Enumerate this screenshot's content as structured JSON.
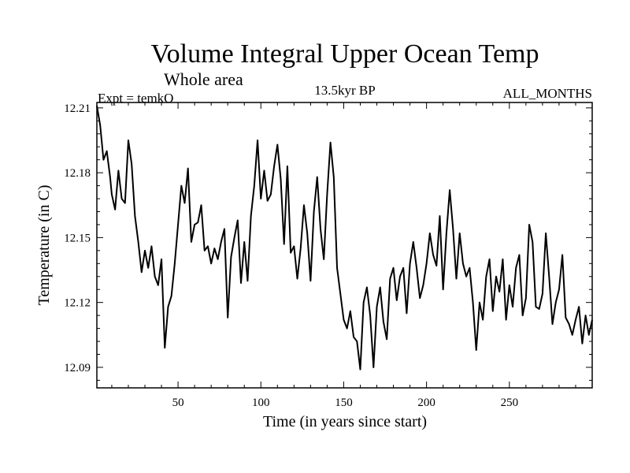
{
  "chart_data": {
    "type": "line",
    "title": "Volume Integral Upper Ocean Temp",
    "subtitle": "Whole area",
    "left_label": "Expt = temkO",
    "center_label": "13.5kyr BP",
    "right_label": "ALL_MONTHS",
    "xlabel": "Time (in years since start)",
    "ylabel": "Temperature (in C)",
    "xlim": [
      1,
      300
    ],
    "ylim": [
      12.0805,
      12.2125
    ],
    "xticks": [
      50,
      100,
      150,
      200,
      250
    ],
    "xtick_labels": [
      "50",
      "100",
      "150",
      "200",
      "250"
    ],
    "yticks": [
      12.09,
      12.12,
      12.15,
      12.18,
      12.21
    ],
    "ytick_labels": [
      "12.09",
      "12.12",
      "12.15",
      "12.18",
      "12.21"
    ],
    "grid": false,
    "series": [
      {
        "name": "Expt = temkO",
        "x": [
          1,
          3,
          5,
          7,
          9,
          10,
          12,
          14,
          16,
          18,
          20,
          22,
          24,
          26,
          28,
          30,
          32,
          34,
          36,
          38,
          40,
          42,
          44,
          46,
          48,
          50,
          52,
          54,
          56,
          58,
          60,
          62,
          64,
          66,
          68,
          70,
          72,
          74,
          76,
          78,
          80,
          82,
          84,
          86,
          88,
          90,
          92,
          94,
          96,
          98,
          100,
          102,
          104,
          106,
          108,
          110,
          112,
          114,
          116,
          118,
          120,
          122,
          124,
          126,
          128,
          130,
          132,
          134,
          136,
          138,
          140,
          142,
          144,
          146,
          148,
          150,
          152,
          154,
          156,
          158,
          160,
          162,
          164,
          166,
          168,
          170,
          172,
          174,
          176,
          178,
          180,
          182,
          184,
          186,
          188,
          190,
          192,
          194,
          196,
          198,
          200,
          202,
          204,
          206,
          208,
          210,
          212,
          214,
          216,
          218,
          220,
          222,
          224,
          226,
          228,
          230,
          232,
          234,
          236,
          238,
          240,
          242,
          244,
          246,
          248,
          250,
          252,
          254,
          256,
          258,
          260,
          262,
          264,
          266,
          268,
          270,
          272,
          274,
          276,
          278,
          280,
          282,
          284,
          286,
          288,
          290,
          292,
          294,
          296,
          298,
          300
        ],
        "y": [
          12.211,
          12.202,
          12.186,
          12.19,
          12.178,
          12.17,
          12.163,
          12.181,
          12.168,
          12.166,
          12.195,
          12.184,
          12.16,
          12.148,
          12.134,
          12.144,
          12.136,
          12.146,
          12.132,
          12.128,
          12.14,
          12.099,
          12.118,
          12.123,
          12.138,
          12.156,
          12.174,
          12.166,
          12.182,
          12.148,
          12.156,
          12.157,
          12.165,
          12.144,
          12.146,
          12.138,
          12.145,
          12.14,
          12.148,
          12.154,
          12.113,
          12.141,
          12.15,
          12.158,
          12.129,
          12.148,
          12.13,
          12.16,
          12.174,
          12.195,
          12.168,
          12.181,
          12.167,
          12.17,
          12.183,
          12.193,
          12.177,
          12.147,
          12.183,
          12.143,
          12.146,
          12.131,
          12.145,
          12.165,
          12.152,
          12.13,
          12.162,
          12.178,
          12.154,
          12.14,
          12.17,
          12.194,
          12.178,
          12.136,
          12.124,
          12.112,
          12.108,
          12.116,
          12.104,
          12.102,
          12.089,
          12.12,
          12.127,
          12.114,
          12.09,
          12.118,
          12.127,
          12.111,
          12.103,
          12.131,
          12.136,
          12.121,
          12.132,
          12.136,
          12.115,
          12.138,
          12.148,
          12.136,
          12.122,
          12.128,
          12.138,
          12.152,
          12.142,
          12.137,
          12.16,
          12.126,
          12.152,
          12.172,
          12.154,
          12.131,
          12.152,
          12.138,
          12.132,
          12.136,
          12.12,
          12.098,
          12.12,
          12.112,
          12.132,
          12.14,
          12.116,
          12.132,
          12.125,
          12.14,
          12.112,
          12.128,
          12.118,
          12.136,
          12.142,
          12.114,
          12.122,
          12.156,
          12.148,
          12.118,
          12.117,
          12.124,
          12.152,
          12.132,
          12.11,
          12.12,
          12.126,
          12.142,
          12.113,
          12.11,
          12.105,
          12.112,
          12.118,
          12.101,
          12.114,
          12.105,
          12.112
        ]
      }
    ]
  }
}
